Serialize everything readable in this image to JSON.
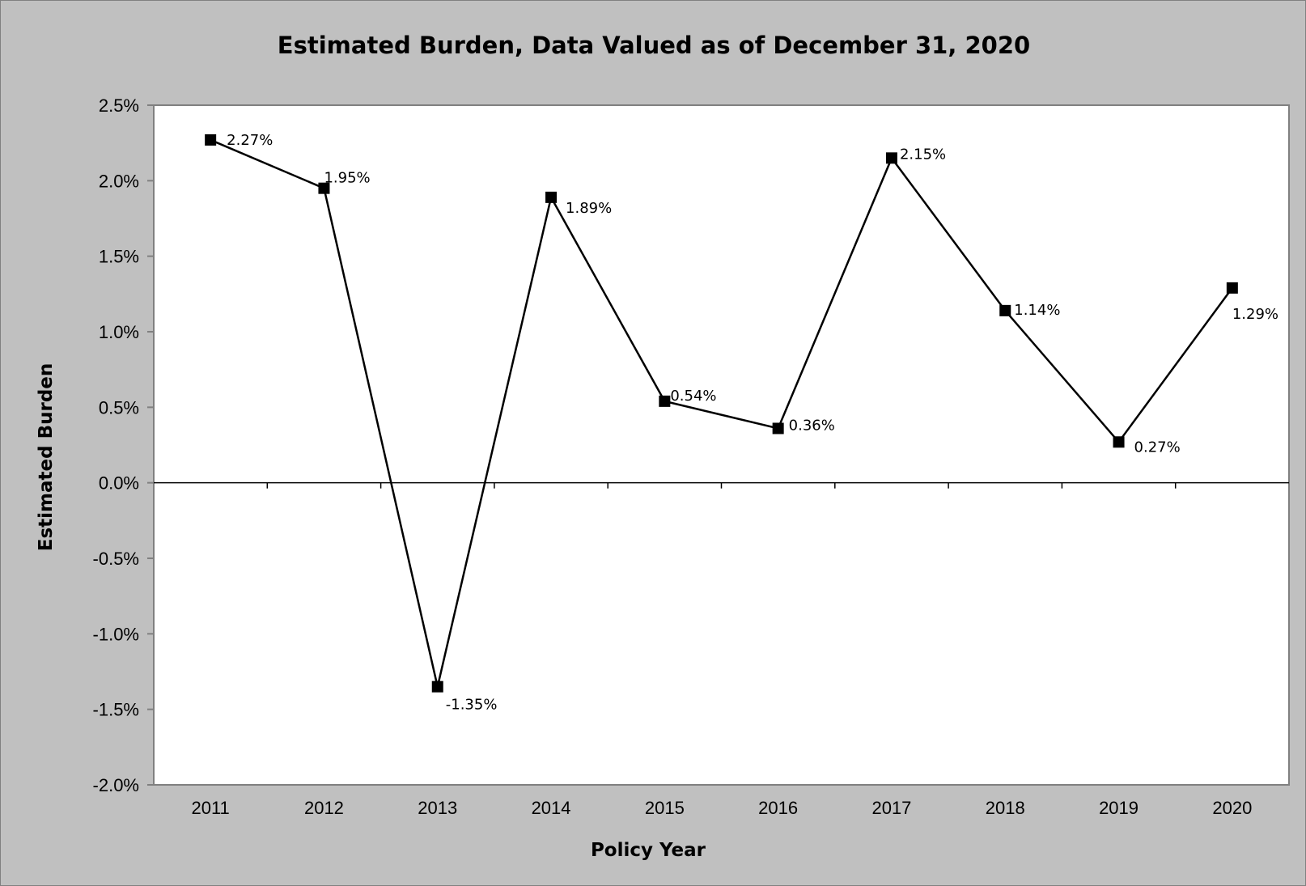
{
  "chart_data": {
    "type": "line",
    "title": "Estimated Burden, Data Valued as of December 31, 2020",
    "xlabel": "Policy Year",
    "ylabel": "Estimated Burden",
    "categories": [
      "2011",
      "2012",
      "2013",
      "2014",
      "2015",
      "2016",
      "2017",
      "2018",
      "2019",
      "2020"
    ],
    "series": [
      {
        "values": [
          2.27,
          1.95,
          -1.35,
          1.89,
          0.54,
          0.36,
          2.15,
          1.14,
          0.27,
          1.29
        ],
        "data_labels": [
          "2.27%",
          "1.95%",
          "-1.35%",
          "1.89%",
          "0.54%",
          "0.36%",
          "2.15%",
          "1.14%",
          "0.27%",
          "1.29%"
        ],
        "marker": "square",
        "color": "#000000"
      }
    ],
    "ylim": [
      -2.0,
      2.5
    ],
    "y_ticks": [
      2.5,
      2.0,
      1.5,
      1.0,
      0.5,
      0.0,
      -0.5,
      -1.0,
      -1.5,
      -2.0
    ],
    "y_tick_labels": [
      "2.5%",
      "2.0%",
      "1.5%",
      "1.0%",
      "0.5%",
      "0.0%",
      "-0.5%",
      "-1.0%",
      "-1.5%",
      "-2.0%"
    ],
    "grid": false,
    "legend": "none",
    "colors": {
      "chart_background": "#c0c0c0",
      "plot_background": "#ffffff",
      "line": "#000000"
    }
  }
}
